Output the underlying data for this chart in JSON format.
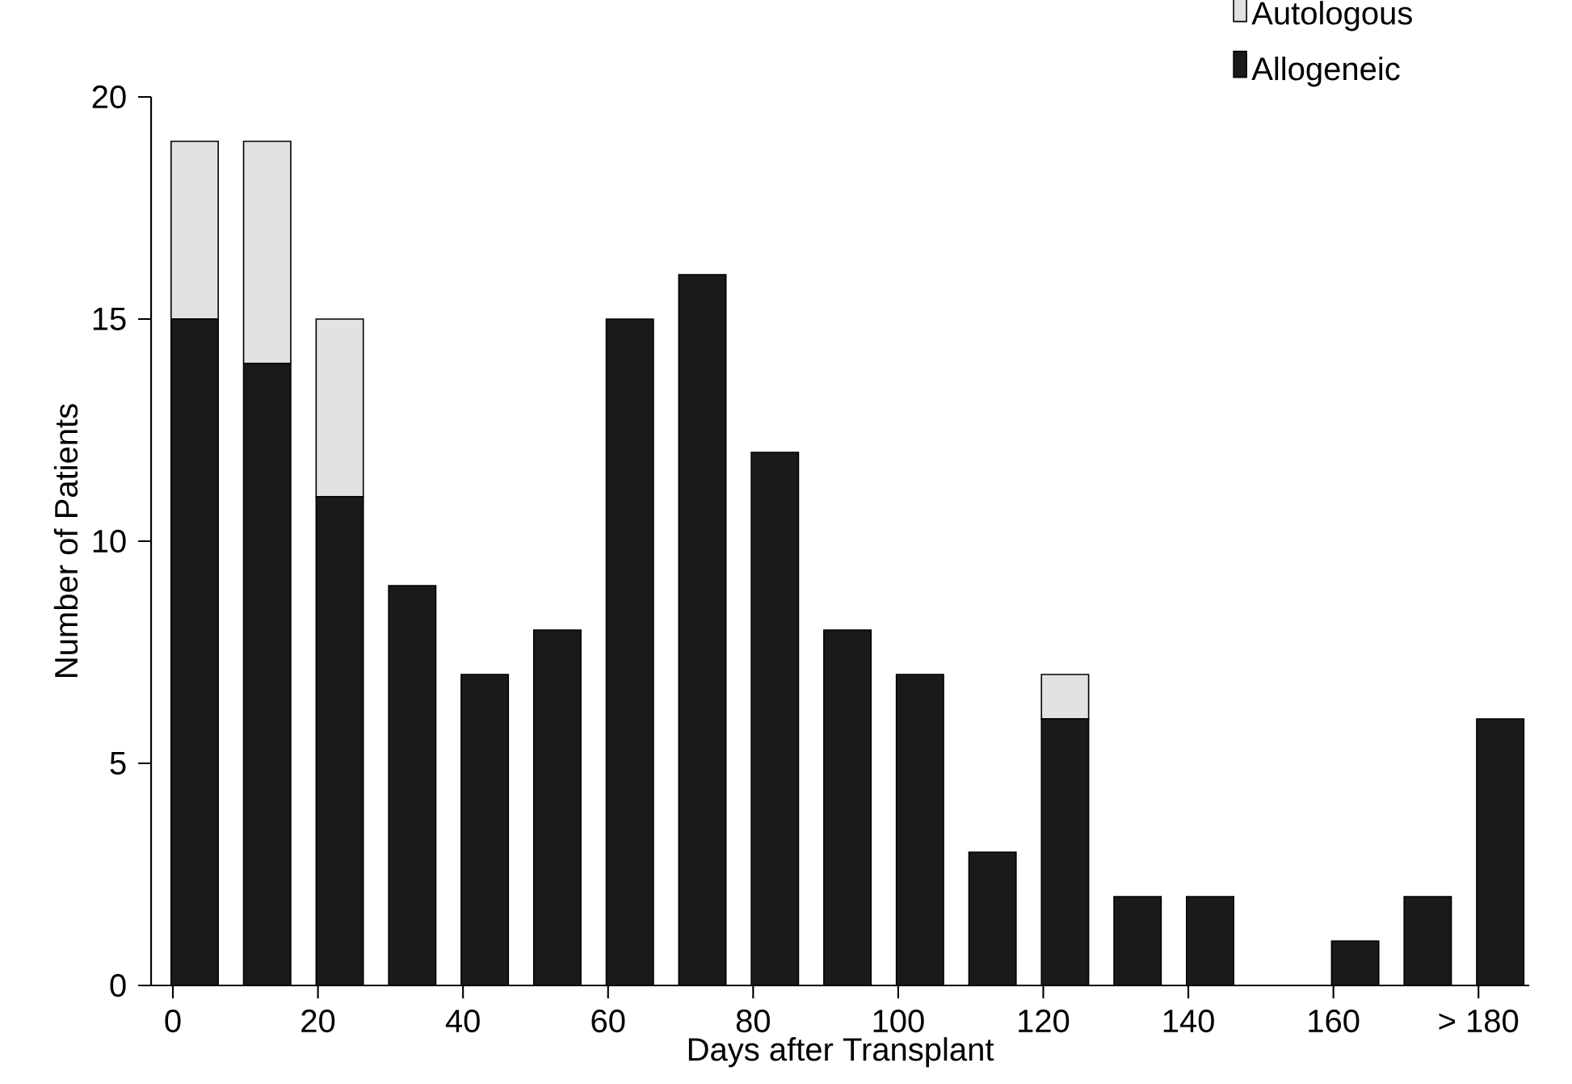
{
  "chart_data": {
    "type": "bar",
    "stacked": true,
    "xlabel": "Days after Transplant",
    "ylabel": "Number of Patients",
    "x": [
      3,
      13,
      23,
      33,
      43,
      53,
      63,
      73,
      83,
      93,
      103,
      113,
      123,
      133,
      143,
      153,
      163,
      173,
      183
    ],
    "series": [
      {
        "name": "Allogeneic",
        "color": "#1a1a1a",
        "values": [
          15,
          14,
          11,
          9,
          7,
          8,
          15,
          16,
          12,
          8,
          7,
          3,
          6,
          2,
          2,
          null,
          1,
          2,
          6
        ]
      },
      {
        "name": "Autologous",
        "color": "#e2e2e2",
        "values": [
          4,
          5,
          4,
          null,
          null,
          null,
          null,
          null,
          null,
          null,
          null,
          null,
          1,
          null,
          null,
          null,
          null,
          null,
          null
        ]
      }
    ],
    "xlim": [
      -3,
      187
    ],
    "ylim": [
      0,
      20
    ],
    "xticks": [
      0,
      20,
      40,
      60,
      80,
      100,
      120,
      140,
      160,
      {
        "value": 180,
        "label": "> 180"
      }
    ],
    "yticks": [
      0,
      5,
      10,
      15,
      20
    ],
    "legend": "top right",
    "grid": false
  }
}
